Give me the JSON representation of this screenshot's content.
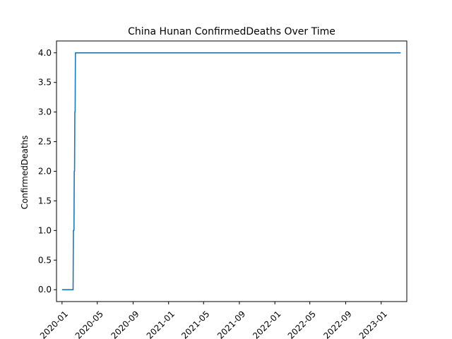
{
  "chart_data": {
    "type": "line",
    "title": "China Hunan ConfirmedDeaths Over Time",
    "xlabel": "",
    "ylabel": "ConfirmedDeaths",
    "xlim": [
      "2019-12-13",
      "2023-03-30"
    ],
    "ylim": [
      -0.2,
      4.2
    ],
    "grid": false,
    "x_ticks": [
      {
        "value": "2020-01-01",
        "label": "2020-01"
      },
      {
        "value": "2020-05-01",
        "label": "2020-05"
      },
      {
        "value": "2020-09-01",
        "label": "2020-09"
      },
      {
        "value": "2021-01-01",
        "label": "2021-01"
      },
      {
        "value": "2021-05-01",
        "label": "2021-05"
      },
      {
        "value": "2021-09-01",
        "label": "2021-09"
      },
      {
        "value": "2022-01-01",
        "label": "2022-01"
      },
      {
        "value": "2022-05-01",
        "label": "2022-05"
      },
      {
        "value": "2022-09-01",
        "label": "2022-09"
      },
      {
        "value": "2023-01-01",
        "label": "2023-01"
      }
    ],
    "y_ticks": [
      {
        "value": 0.0,
        "label": "0.0"
      },
      {
        "value": 0.5,
        "label": "0.5"
      },
      {
        "value": 1.0,
        "label": "1.0"
      },
      {
        "value": 1.5,
        "label": "1.5"
      },
      {
        "value": 2.0,
        "label": "2.0"
      },
      {
        "value": 2.5,
        "label": "2.5"
      },
      {
        "value": 3.0,
        "label": "3.0"
      },
      {
        "value": 3.5,
        "label": "3.5"
      },
      {
        "value": 4.0,
        "label": "4.0"
      }
    ],
    "series": [
      {
        "color": "#1f77b4",
        "points": [
          {
            "x": "2020-01-01",
            "y": 0
          },
          {
            "x": "2020-02-08",
            "y": 0
          },
          {
            "x": "2020-02-09",
            "y": 1
          },
          {
            "x": "2020-02-11",
            "y": 1
          },
          {
            "x": "2020-02-12",
            "y": 2
          },
          {
            "x": "2020-02-13",
            "y": 2
          },
          {
            "x": "2020-02-14",
            "y": 3
          },
          {
            "x": "2020-02-15",
            "y": 3
          },
          {
            "x": "2020-02-16",
            "y": 4
          },
          {
            "x": "2023-03-09",
            "y": 4
          }
        ]
      }
    ]
  }
}
